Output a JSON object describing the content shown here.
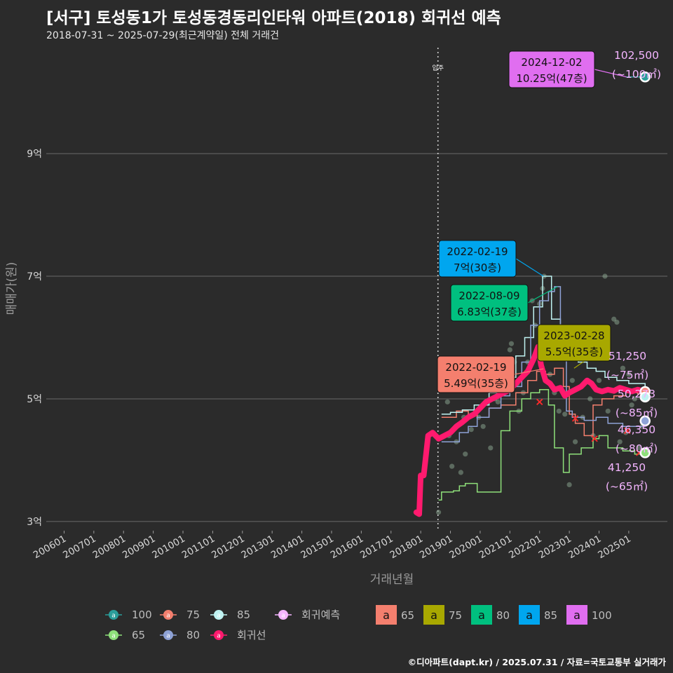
{
  "header": {
    "title": "[서구] 토성동1가 토성동경동리인타워 아파트(2018) 회귀선 예측",
    "subtitle": "2018-07-31 ~ 2025-07-29(최근계약일) 전체 거래건"
  },
  "caption": "©디아파트(dapt.kr) / 2025.07.31 / 자료=국토교통부 실거래가",
  "colors": {
    "background": "#2b2b2b",
    "s100": "#2a9d9a",
    "s75": "#e8605a",
    "s85": "#bff3f2",
    "s65": "#8ee07a",
    "s80": "#8ea2d6",
    "regression": "#ff1a6e",
    "forecast": "#f4b5ff"
  },
  "chart_data": {
    "type": "line",
    "xlabel": "거래년월",
    "ylabel": "매매가(원)",
    "x_ticks": [
      "200601",
      "200701",
      "200801",
      "200901",
      "201001",
      "201101",
      "201201",
      "201301",
      "201401",
      "201501",
      "201601",
      "201701",
      "201801",
      "201901",
      "202001",
      "202101",
      "202201",
      "202301",
      "202401",
      "202501"
    ],
    "y_ticks": [
      {
        "value": 3,
        "label": "3억"
      },
      {
        "value": 5,
        "label": "5억"
      },
      {
        "value": 7,
        "label": "7억"
      },
      {
        "value": 9,
        "label": "9억"
      }
    ],
    "ylim": [
      2.85,
      10.75
    ],
    "xlim": [
      2005.4,
      2026.3
    ],
    "grid": true,
    "vline": {
      "x": 2018.58,
      "label": "입주"
    },
    "series": [
      {
        "name": "65",
        "key": "s65",
        "points": [
          [
            2018.6,
            3.35
          ],
          [
            2018.7,
            3.48
          ],
          [
            2019.1,
            3.5
          ],
          [
            2019.3,
            3.58
          ],
          [
            2019.5,
            3.62
          ],
          [
            2019.8,
            3.62
          ],
          [
            2019.9,
            3.48
          ],
          [
            2020.7,
            4.48
          ],
          [
            2021.0,
            4.8
          ],
          [
            2021.4,
            5.0
          ],
          [
            2021.7,
            5.1
          ],
          [
            2022.0,
            5.15
          ],
          [
            2022.3,
            4.9
          ],
          [
            2022.5,
            4.2
          ],
          [
            2022.8,
            3.8
          ],
          [
            2023.0,
            4.1
          ],
          [
            2023.4,
            4.2
          ],
          [
            2023.8,
            4.35
          ],
          [
            2024.0,
            4.4
          ],
          [
            2024.3,
            4.2
          ],
          [
            2024.8,
            4.15
          ],
          [
            2025.2,
            4.1
          ],
          [
            2025.55,
            4.12
          ]
        ]
      },
      {
        "name": "75",
        "key": "s75",
        "points": [
          [
            2018.7,
            4.7
          ],
          [
            2019.2,
            4.8
          ],
          [
            2019.6,
            4.75
          ],
          [
            2019.9,
            4.7
          ],
          [
            2020.3,
            4.85
          ],
          [
            2020.7,
            4.9
          ],
          [
            2021.2,
            5.1
          ],
          [
            2021.6,
            5.3
          ],
          [
            2021.9,
            5.45
          ],
          [
            2022.2,
            5.4
          ],
          [
            2022.5,
            5.5
          ],
          [
            2022.8,
            5.2
          ],
          [
            2023.0,
            4.75
          ],
          [
            2023.2,
            4.6
          ],
          [
            2023.5,
            4.4
          ],
          [
            2023.8,
            4.9
          ],
          [
            2024.1,
            5.0
          ],
          [
            2024.5,
            5.05
          ],
          [
            2024.9,
            5.1
          ],
          [
            2025.3,
            5.08
          ],
          [
            2025.55,
            5.12
          ]
        ]
      },
      {
        "name": "85",
        "key": "s85",
        "points": [
          [
            2018.7,
            4.75
          ],
          [
            2019.0,
            4.78
          ],
          [
            2019.4,
            4.82
          ],
          [
            2019.8,
            4.9
          ],
          [
            2020.3,
            5.1
          ],
          [
            2020.8,
            5.35
          ],
          [
            2021.2,
            5.7
          ],
          [
            2021.5,
            6.0
          ],
          [
            2021.8,
            6.5
          ],
          [
            2022.1,
            7.0
          ],
          [
            2022.4,
            6.3
          ],
          [
            2022.7,
            5.9
          ],
          [
            2023.0,
            5.7
          ],
          [
            2023.3,
            5.6
          ],
          [
            2023.6,
            5.5
          ],
          [
            2023.9,
            5.45
          ],
          [
            2024.2,
            5.35
          ],
          [
            2024.6,
            5.3
          ],
          [
            2025.0,
            5.25
          ],
          [
            2025.55,
            5.03
          ]
        ]
      },
      {
        "name": "80",
        "key": "s80",
        "points": [
          [
            2018.7,
            4.3
          ],
          [
            2019.0,
            4.3
          ],
          [
            2019.3,
            4.45
          ],
          [
            2019.6,
            4.55
          ],
          [
            2019.9,
            4.7
          ],
          [
            2020.3,
            4.85
          ],
          [
            2020.7,
            5.05
          ],
          [
            2021.0,
            5.2
          ],
          [
            2021.4,
            5.6
          ],
          [
            2021.7,
            6.2
          ],
          [
            2022.0,
            6.6
          ],
          [
            2022.3,
            6.75
          ],
          [
            2022.5,
            6.83
          ],
          [
            2022.7,
            5.8
          ],
          [
            2022.9,
            4.8
          ],
          [
            2023.1,
            4.7
          ],
          [
            2023.5,
            4.65
          ],
          [
            2023.9,
            4.7
          ],
          [
            2024.3,
            4.6
          ],
          [
            2024.8,
            4.55
          ],
          [
            2025.55,
            4.64
          ]
        ]
      },
      {
        "name": "100",
        "key": "s100",
        "points": [
          [
            2024.9,
            10.25
          ],
          [
            2025.2,
            10.25
          ],
          [
            2025.55,
            10.25
          ]
        ]
      }
    ],
    "regression": {
      "name": "회귀선",
      "key": "regression",
      "points": [
        [
          2017.85,
          3.15
        ],
        [
          2017.95,
          3.12
        ],
        [
          2018.0,
          3.75
        ],
        [
          2018.1,
          3.75
        ],
        [
          2018.25,
          4.4
        ],
        [
          2018.4,
          4.45
        ],
        [
          2018.6,
          4.35
        ],
        [
          2018.8,
          4.4
        ],
        [
          2019.0,
          4.45
        ],
        [
          2019.2,
          4.55
        ],
        [
          2019.4,
          4.62
        ],
        [
          2019.6,
          4.7
        ],
        [
          2019.8,
          4.75
        ],
        [
          2020.0,
          4.85
        ],
        [
          2020.2,
          4.95
        ],
        [
          2020.4,
          5.0
        ],
        [
          2020.6,
          5.05
        ],
        [
          2020.8,
          5.1
        ],
        [
          2021.0,
          5.15
        ],
        [
          2021.2,
          5.25
        ],
        [
          2021.4,
          5.35
        ],
        [
          2021.6,
          5.45
        ],
        [
          2021.8,
          5.65
        ],
        [
          2021.95,
          5.85
        ],
        [
          2022.05,
          5.55
        ],
        [
          2022.2,
          5.3
        ],
        [
          2022.35,
          5.25
        ],
        [
          2022.5,
          5.15
        ],
        [
          2022.7,
          5.18
        ],
        [
          2022.85,
          5.05
        ],
        [
          2023.0,
          5.1
        ],
        [
          2023.2,
          5.15
        ],
        [
          2023.4,
          5.2
        ],
        [
          2023.6,
          5.3
        ],
        [
          2023.75,
          5.25
        ],
        [
          2023.9,
          5.15
        ],
        [
          2024.1,
          5.12
        ],
        [
          2024.3,
          5.15
        ],
        [
          2024.5,
          5.13
        ],
        [
          2024.7,
          5.18
        ],
        [
          2024.9,
          5.15
        ],
        [
          2025.1,
          5.12
        ],
        [
          2025.3,
          5.15
        ],
        [
          2025.55,
          5.12
        ]
      ]
    },
    "scatter": [
      [
        2018.6,
        3.15
      ],
      [
        2018.9,
        4.95
      ],
      [
        2018.95,
        4.4
      ],
      [
        2019.05,
        3.9
      ],
      [
        2019.2,
        4.3
      ],
      [
        2019.35,
        3.8
      ],
      [
        2019.45,
        4.7
      ],
      [
        2019.5,
        4.1
      ],
      [
        2019.7,
        4.5
      ],
      [
        2019.95,
        4.7
      ],
      [
        2020.1,
        4.55
      ],
      [
        2020.35,
        4.2
      ],
      [
        2020.5,
        5.0
      ],
      [
        2020.6,
        4.95
      ],
      [
        2020.8,
        5.3
      ],
      [
        2021.0,
        5.8
      ],
      [
        2021.05,
        5.9
      ],
      [
        2021.15,
        5.6
      ],
      [
        2021.25,
        5.25
      ],
      [
        2021.3,
        4.8
      ],
      [
        2021.45,
        5.1
      ],
      [
        2021.6,
        5.6
      ],
      [
        2021.75,
        6.6
      ],
      [
        2021.85,
        6.2
      ],
      [
        2022.0,
        6.55
      ],
      [
        2022.1,
        6.8
      ],
      [
        2022.15,
        7.0
      ],
      [
        2022.35,
        5.4
      ],
      [
        2022.5,
        5.1
      ],
      [
        2022.65,
        4.8
      ],
      [
        2022.85,
        4.75
      ],
      [
        2023.0,
        3.6
      ],
      [
        2023.1,
        5.3
      ],
      [
        2023.2,
        4.3
      ],
      [
        2023.45,
        4.7
      ],
      [
        2023.5,
        5.9
      ],
      [
        2023.6,
        6.1
      ],
      [
        2023.7,
        5.0
      ],
      [
        2023.8,
        4.4
      ],
      [
        2024.0,
        5.3
      ],
      [
        2024.1,
        6.0
      ],
      [
        2024.2,
        7.0
      ],
      [
        2024.3,
        4.8
      ],
      [
        2024.5,
        6.3
      ],
      [
        2024.6,
        6.25
      ],
      [
        2024.7,
        4.3
      ],
      [
        2024.8,
        5.5
      ],
      [
        2024.9,
        4.45
      ],
      [
        2025.0,
        5.4
      ],
      [
        2025.1,
        4.9
      ],
      [
        2025.2,
        5.0
      ],
      [
        2025.35,
        4.2
      ],
      [
        2025.45,
        4.55
      ]
    ],
    "forecast_points": [
      {
        "key": "s100",
        "x": 2025.55,
        "y": 10.25
      },
      {
        "key": "s75",
        "x": 2025.55,
        "y": 5.12
      },
      {
        "key": "s85",
        "x": 2025.55,
        "y": 5.03
      },
      {
        "key": "s80",
        "x": 2025.55,
        "y": 4.64
      },
      {
        "key": "s65",
        "x": 2025.55,
        "y": 4.12
      }
    ],
    "cross_marks": [
      [
        2022.0,
        4.95
      ],
      [
        2023.2,
        4.68
      ],
      [
        2023.85,
        4.35
      ],
      [
        2024.95,
        4.48
      ],
      [
        2025.35,
        4.12
      ]
    ],
    "annotations": [
      {
        "key": "s100",
        "date": "2024-12-02",
        "text": "10.25억(47층)",
        "x": 2024.92,
        "y": 10.25
      },
      {
        "key": "s85",
        "date": "2022-02-19",
        "text": "7억(30층)",
        "x": 2022.13,
        "y": 7.0
      },
      {
        "key": "s80",
        "date": "2022-08-09",
        "text": "6.83억(37층)",
        "x": 2022.6,
        "y": 6.83
      },
      {
        "key": "s75",
        "date": "2023-02-28",
        "text": "5.5억(35층)",
        "x": 2023.16,
        "y": 5.5
      },
      {
        "key": "s65",
        "date": "2022-02-19",
        "text": "5.49억(35층)",
        "x": 2022.13,
        "y": 5.49
      }
    ],
    "forecast_labels": [
      {
        "value": "102,500",
        "area": "(~100㎡)"
      },
      {
        "value": "51,250",
        "area": "(~75㎡)"
      },
      {
        "value": "50,273",
        "area": "(~85㎡)"
      },
      {
        "value": "46,350",
        "area": "(~80㎡)"
      },
      {
        "value": "41,250",
        "area": "(~65㎡)"
      }
    ],
    "legend": {
      "position": "bottom",
      "row1": [
        {
          "label": "100",
          "key": "s100"
        },
        {
          "label": "75",
          "key": "s75"
        },
        {
          "label": "85",
          "key": "s85"
        },
        {
          "label": "회귀예측",
          "key": "forecast"
        }
      ],
      "row2": [
        {
          "label": "65",
          "key": "s65"
        },
        {
          "label": "80",
          "key": "s80"
        },
        {
          "label": "회귀선",
          "key": "regression"
        }
      ],
      "boxes": [
        {
          "label": "65",
          "key": "s75"
        },
        {
          "label": "75",
          "key": "box75"
        },
        {
          "label": "80",
          "key": "box80"
        },
        {
          "label": "85",
          "key": "box85"
        },
        {
          "label": "100",
          "key": "box100"
        }
      ],
      "box_letter": "a"
    },
    "box_colors": {
      "s75": "#f47f6e",
      "box75": "#a8a800",
      "box80": "#00c07f",
      "box85": "#00a6ef",
      "box100": "#e06ef0"
    }
  }
}
